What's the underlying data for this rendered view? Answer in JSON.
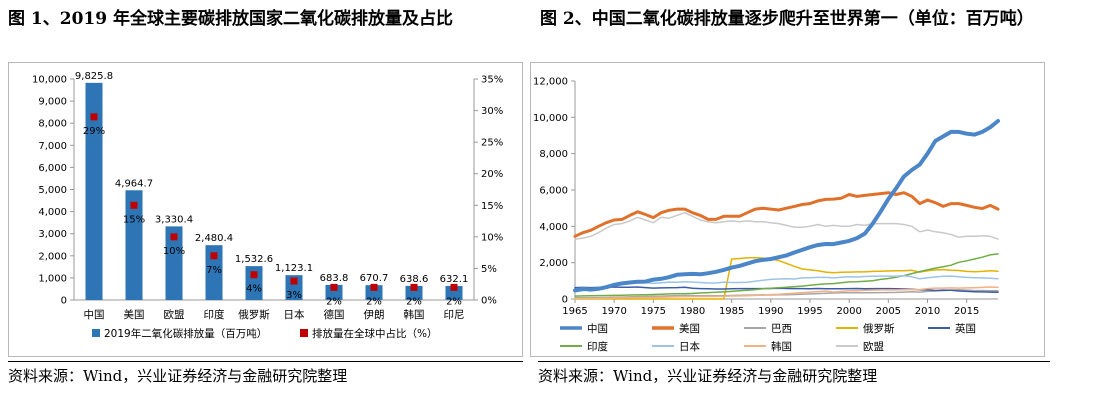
{
  "figure1": {
    "title": "图 1、2019 年全球主要碳排放国家二氧化碳排放量及占比",
    "source": "资料来源：Wind，兴业证券经济与金融研究院整理"
  },
  "figure2": {
    "title": "图 2、中国二氧化碳排放量逐步爬升至世界第一（单位：百万吨）",
    "source": "资料来源：Wind，兴业证券经济与金融研究院整理"
  },
  "colors": {
    "bar": "#2e75b6",
    "marker": "#c00000"
  },
  "chart_data": [
    {
      "type": "bar",
      "categories": [
        "中国",
        "美国",
        "欧盟",
        "印度",
        "俄罗斯",
        "日本",
        "德国",
        "伊朗",
        "韩国",
        "印尼"
      ],
      "series": [
        {
          "name": "2019年二氧化碳排放量（百万吨）",
          "axis": "left",
          "values": [
            9825.8,
            4964.7,
            3330.4,
            2480.4,
            1532.6,
            1123.1,
            683.8,
            670.7,
            638.6,
            632.1
          ],
          "labels": [
            "9,825.8",
            "4,964.7",
            "3,330.4",
            "2,480.4",
            "1,532.6",
            "1,123.1",
            "683.8",
            "670.7",
            "638.6",
            "632.1"
          ]
        },
        {
          "name": "排放量在全球中占比（%）",
          "axis": "right",
          "type": "scatter",
          "values": [
            29,
            15,
            10,
            7,
            4,
            3,
            2,
            2,
            2,
            2
          ],
          "labels": [
            "29%",
            "15%",
            "10%",
            "7%",
            "4%",
            "3%",
            "2%",
            "2%",
            "2%",
            "2%"
          ]
        }
      ],
      "ylim": [
        0,
        10000
      ],
      "yticks": [
        "0",
        "1,000",
        "2,000",
        "3,000",
        "4,000",
        "5,000",
        "6,000",
        "7,000",
        "8,000",
        "9,000",
        "10,000"
      ],
      "y2lim": [
        0,
        35
      ],
      "y2ticks": [
        "0%",
        "5%",
        "10%",
        "15%",
        "20%",
        "25%",
        "30%",
        "35%"
      ],
      "legend": "bottom",
      "grid": false
    },
    {
      "type": "line",
      "x": [
        1965,
        1966,
        1967,
        1968,
        1969,
        1970,
        1971,
        1972,
        1973,
        1974,
        1975,
        1976,
        1977,
        1978,
        1979,
        1980,
        1981,
        1982,
        1983,
        1984,
        1985,
        1986,
        1987,
        1988,
        1989,
        1990,
        1991,
        1992,
        1993,
        1994,
        1995,
        1996,
        1997,
        1998,
        1999,
        2000,
        2001,
        2002,
        2003,
        2004,
        2005,
        2006,
        2007,
        2008,
        2009,
        2010,
        2011,
        2012,
        2013,
        2014,
        2015,
        2016,
        2017,
        2018,
        2019
      ],
      "xticks": [
        "1965",
        "1970",
        "1975",
        "1980",
        "1985",
        "1990",
        "1995",
        "2000",
        "2005",
        "2010",
        "2015"
      ],
      "ylim": [
        0,
        12000
      ],
      "yticks": [
        "0",
        "2,000",
        "4,000",
        "6,000",
        "8,000",
        "10,000",
        "12,000"
      ],
      "legend": "bottom",
      "grid": false,
      "series": [
        {
          "name": "中国",
          "color": "#4a86c8",
          "width": 4,
          "values": [
            480,
            560,
            520,
            560,
            650,
            780,
            860,
            910,
            950,
            960,
            1070,
            1110,
            1200,
            1330,
            1360,
            1380,
            1360,
            1420,
            1500,
            1600,
            1730,
            1820,
            1950,
            2080,
            2150,
            2200,
            2300,
            2400,
            2560,
            2700,
            2850,
            2970,
            3030,
            3020,
            3110,
            3200,
            3350,
            3600,
            4150,
            4800,
            5500,
            6100,
            6750,
            7100,
            7400,
            8000,
            8700,
            8950,
            9200,
            9200,
            9100,
            9050,
            9200,
            9450,
            9800
          ]
        },
        {
          "name": "美国",
          "color": "#e0702a",
          "width": 3,
          "values": [
            3450,
            3650,
            3780,
            4000,
            4200,
            4350,
            4380,
            4600,
            4800,
            4650,
            4480,
            4750,
            4880,
            4950,
            4950,
            4750,
            4600,
            4380,
            4380,
            4550,
            4550,
            4550,
            4750,
            4950,
            5000,
            4950,
            4900,
            5000,
            5100,
            5200,
            5250,
            5400,
            5480,
            5500,
            5550,
            5750,
            5650,
            5700,
            5750,
            5800,
            5850,
            5750,
            5850,
            5650,
            5250,
            5450,
            5300,
            5100,
            5250,
            5250,
            5150,
            5050,
            4980,
            5150,
            4950
          ]
        },
        {
          "name": "巴西",
          "color": "#a6a6a6",
          "width": 1.5,
          "values": [
            60,
            65,
            70,
            75,
            85,
            95,
            105,
            115,
            130,
            140,
            150,
            160,
            170,
            180,
            190,
            190,
            180,
            185,
            180,
            180,
            190,
            210,
            215,
            220,
            225,
            220,
            230,
            235,
            245,
            260,
            280,
            300,
            320,
            330,
            340,
            345,
            350,
            345,
            340,
            355,
            360,
            365,
            380,
            400,
            380,
            420,
            440,
            460,
            490,
            510,
            490,
            460,
            470,
            450,
            450
          ]
        },
        {
          "name": "俄罗斯",
          "color": "#e6b200",
          "width": 1.5,
          "values": [
            0,
            0,
            0,
            0,
            0,
            0,
            0,
            0,
            0,
            0,
            0,
            0,
            0,
            0,
            0,
            0,
            0,
            0,
            0,
            0,
            2200,
            2230,
            2260,
            2280,
            2250,
            2200,
            2120,
            1960,
            1800,
            1650,
            1600,
            1550,
            1480,
            1450,
            1470,
            1480,
            1490,
            1490,
            1520,
            1530,
            1540,
            1560,
            1560,
            1580,
            1480,
            1550,
            1600,
            1620,
            1580,
            1570,
            1520,
            1500,
            1520,
            1550,
            1530
          ]
        },
        {
          "name": "英国",
          "color": "#3b5da8",
          "width": 1.5,
          "values": [
            630,
            640,
            630,
            640,
            650,
            660,
            650,
            650,
            660,
            630,
            600,
            610,
            620,
            630,
            650,
            590,
            570,
            560,
            550,
            550,
            560,
            570,
            570,
            570,
            570,
            580,
            590,
            580,
            570,
            570,
            560,
            580,
            560,
            560,
            560,
            570,
            580,
            560,
            570,
            570,
            570,
            560,
            550,
            540,
            500,
            510,
            470,
            490,
            480,
            440,
            420,
            400,
            390,
            380,
            370
          ]
        },
        {
          "name": "印度",
          "color": "#70ad47",
          "width": 1.5,
          "values": [
            160,
            170,
            175,
            185,
            190,
            200,
            210,
            220,
            225,
            235,
            250,
            265,
            280,
            290,
            300,
            310,
            330,
            350,
            370,
            390,
            420,
            450,
            480,
            520,
            560,
            590,
            620,
            650,
            680,
            710,
            760,
            800,
            830,
            850,
            900,
            940,
            950,
            980,
            1010,
            1080,
            1130,
            1200,
            1290,
            1400,
            1510,
            1600,
            1700,
            1780,
            1860,
            2020,
            2100,
            2200,
            2300,
            2430,
            2480
          ]
        },
        {
          "name": "日本",
          "color": "#9dc3e6",
          "width": 1.5,
          "values": [
            390,
            450,
            520,
            590,
            660,
            760,
            800,
            840,
            920,
            900,
            860,
            900,
            930,
            920,
            950,
            930,
            910,
            880,
            880,
            930,
            910,
            910,
            920,
            980,
            1030,
            1080,
            1100,
            1110,
            1100,
            1160,
            1170,
            1190,
            1190,
            1160,
            1200,
            1220,
            1210,
            1240,
            1250,
            1260,
            1260,
            1250,
            1280,
            1220,
            1110,
            1170,
            1210,
            1250,
            1260,
            1230,
            1190,
            1170,
            1160,
            1140,
            1110
          ]
        },
        {
          "name": "韩国",
          "color": "#f4b183",
          "width": 1.5,
          "values": [
            20,
            25,
            30,
            35,
            45,
            55,
            60,
            65,
            75,
            80,
            85,
            95,
            110,
            120,
            130,
            130,
            135,
            135,
            145,
            150,
            165,
            170,
            180,
            200,
            210,
            240,
            260,
            290,
            320,
            350,
            380,
            410,
            440,
            380,
            420,
            450,
            460,
            480,
            490,
            500,
            500,
            500,
            510,
            520,
            520,
            570,
            600,
            600,
            610,
            600,
            610,
            620,
            640,
            660,
            640
          ]
        },
        {
          "name": "欧盟",
          "color": "#c9c9c9",
          "width": 1.5,
          "values": [
            3300,
            3350,
            3450,
            3650,
            3900,
            4100,
            4150,
            4300,
            4500,
            4350,
            4200,
            4500,
            4450,
            4600,
            4750,
            4550,
            4350,
            4250,
            4200,
            4250,
            4300,
            4250,
            4300,
            4250,
            4250,
            4200,
            4150,
            4050,
            3950,
            3950,
            4000,
            4100,
            4000,
            4050,
            4000,
            4000,
            4100,
            4050,
            4150,
            4150,
            4150,
            4150,
            4100,
            4000,
            3700,
            3800,
            3700,
            3650,
            3550,
            3400,
            3450,
            3450,
            3480,
            3450,
            3300
          ]
        }
      ]
    }
  ]
}
